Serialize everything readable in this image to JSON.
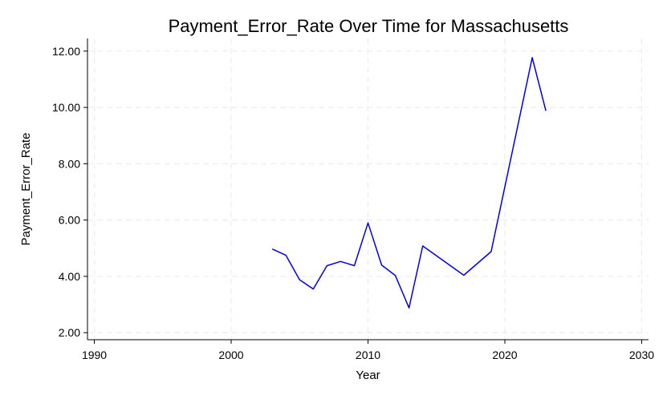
{
  "chart_data": {
    "type": "line",
    "title": "Payment_Error_Rate Over Time for Massachusetts",
    "xlabel": "Year",
    "ylabel": "Payment_Error_Rate",
    "xlim": [
      1989.5,
      2030.5
    ],
    "ylim": [
      1.75,
      12.45
    ],
    "xticks": [
      1990,
      2000,
      2010,
      2020,
      2030
    ],
    "yticks": [
      2,
      4,
      6,
      8,
      10,
      12
    ],
    "ytick_labels": [
      "2.00",
      "4.00",
      "6.00",
      "8.00",
      "10.00",
      "12.00"
    ],
    "grid": true,
    "legend": "none",
    "series": [
      {
        "color": "#0000e6",
        "x": [
          2003,
          2004,
          2005,
          2006,
          2007,
          2008,
          2009,
          2010,
          2011,
          2012,
          2013,
          2014,
          2017,
          2019,
          2022,
          2023
        ],
        "y": [
          4.97,
          4.75,
          3.88,
          3.55,
          4.38,
          4.53,
          4.38,
          5.9,
          4.4,
          4.03,
          2.88,
          5.08,
          4.04,
          4.88,
          11.77,
          9.88
        ]
      }
    ]
  }
}
